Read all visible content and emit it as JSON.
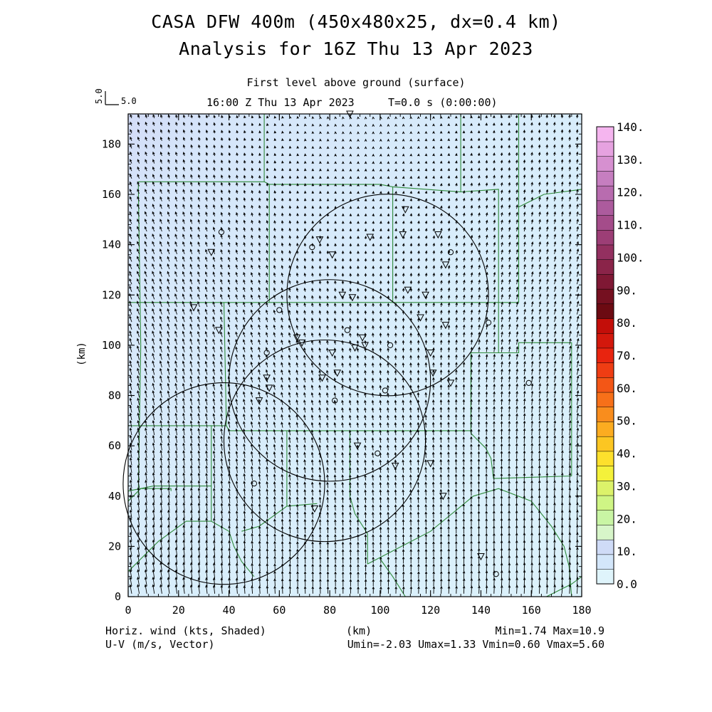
{
  "title": {
    "line1": "CASA DFW 400m (450x480x25, dx=0.4 km)",
    "line2": "Analysis for 16Z Thu 13 Apr 2023"
  },
  "subtitle": {
    "level": "First level above ground (surface)",
    "time": "16:00 Z Thu 13 Apr 2023",
    "elapsed": "T=0.0 s (0:00:00)"
  },
  "reference_vector": {
    "label_x": "5.0",
    "label_y": "5.0"
  },
  "axes": {
    "xlabel": "(km)",
    "ylabel": "(km)",
    "xlim": [
      0,
      180
    ],
    "ylim": [
      0,
      192
    ],
    "xticks": [
      "0",
      "20",
      "40",
      "60",
      "80",
      "100",
      "120",
      "140",
      "160",
      "180"
    ],
    "yticks": [
      "0",
      "20",
      "40",
      "60",
      "80",
      "100",
      "120",
      "140",
      "160",
      "180"
    ]
  },
  "colorbar": {
    "labels": [
      "0.0",
      "10.",
      "20.",
      "30.",
      "40.",
      "50.",
      "60.",
      "70.",
      "80.",
      "90.",
      "100.",
      "110.",
      "120.",
      "130.",
      "140."
    ],
    "colors": [
      "#dff4fb",
      "#d3e6fa",
      "#cfdbf7",
      "#d7f5c9",
      "#c9f5a4",
      "#cff585",
      "#dcf26a",
      "#f4f13a",
      "#fde02c",
      "#fcc622",
      "#fcac20",
      "#f98d1d",
      "#f77019",
      "#f35616",
      "#ef3d13",
      "#e8240f",
      "#d3180c",
      "#c30e09",
      "#6c0a12",
      "#751020",
      "#7f1834",
      "#8a2449",
      "#933060",
      "#9c3e76",
      "#a44c8a",
      "#ac5b9d",
      "#b86caf",
      "#c67ec0",
      "#d690d0",
      "#e6a2e0",
      "#f5b5ef"
    ]
  },
  "footer": {
    "left1": "Horiz. wind (kts, Shaded)",
    "left2": "U-V (m/s, Vector)",
    "center": "(km)",
    "right1": "Min=1.74 Max=10.9",
    "right2": "Umin=-2.03 Umax=1.33 Vmin=0.60 Vmax=5.60"
  },
  "radars": [
    {
      "name": "radar-1",
      "center": [
        38,
        45
      ],
      "radius_km": 40
    },
    {
      "name": "radar-2",
      "center": [
        80,
        86
      ],
      "radius_km": 40
    },
    {
      "name": "radar-3",
      "center": [
        103,
        120
      ],
      "radius_km": 40
    },
    {
      "name": "radar-4",
      "center": [
        78,
        62
      ],
      "radius_km": 40
    }
  ],
  "stations_circle": [
    [
      37,
      145
    ],
    [
      55,
      97
    ],
    [
      60,
      114
    ],
    [
      73,
      139
    ],
    [
      87,
      106
    ],
    [
      82,
      78
    ],
    [
      102,
      82
    ],
    [
      99,
      57
    ],
    [
      104,
      100
    ],
    [
      128,
      137
    ],
    [
      143,
      109
    ],
    [
      159,
      85
    ],
    [
      50,
      45
    ],
    [
      146,
      9
    ]
  ],
  "stations_triangle": [
    [
      33,
      137
    ],
    [
      26,
      115
    ],
    [
      36,
      106
    ],
    [
      55,
      87
    ],
    [
      56,
      83
    ],
    [
      52,
      78
    ],
    [
      67,
      103
    ],
    [
      69,
      101
    ],
    [
      76,
      142
    ],
    [
      81,
      136
    ],
    [
      85,
      120
    ],
    [
      89,
      119
    ],
    [
      81,
      97
    ],
    [
      83,
      89
    ],
    [
      77,
      87
    ],
    [
      93,
      103
    ],
    [
      94,
      100
    ],
    [
      90,
      99
    ],
    [
      96,
      143
    ],
    [
      110,
      154
    ],
    [
      109,
      144
    ],
    [
      123,
      144
    ],
    [
      111,
      122
    ],
    [
      118,
      120
    ],
    [
      116,
      111
    ],
    [
      126,
      108
    ],
    [
      126,
      132
    ],
    [
      120,
      97
    ],
    [
      121,
      89
    ],
    [
      128,
      85
    ],
    [
      91,
      60
    ],
    [
      106,
      52
    ],
    [
      120,
      53
    ],
    [
      125,
      40
    ],
    [
      74,
      35
    ],
    [
      140,
      16
    ],
    [
      88,
      192
    ]
  ],
  "counties": [
    [
      [
        4,
        165
      ],
      [
        54,
        165
      ],
      [
        54,
        192
      ]
    ],
    [
      [
        54,
        165
      ],
      [
        56,
        164
      ],
      [
        56,
        117
      ]
    ],
    [
      [
        4,
        165
      ],
      [
        5,
        100
      ],
      [
        4,
        40
      ]
    ],
    [
      [
        56,
        164
      ],
      [
        100,
        164
      ],
      [
        105,
        163
      ],
      [
        105,
        117
      ]
    ],
    [
      [
        105,
        163
      ],
      [
        132,
        161
      ],
      [
        132,
        192
      ]
    ],
    [
      [
        132,
        161
      ],
      [
        147,
        162
      ],
      [
        147,
        117
      ]
    ],
    [
      [
        0,
        117
      ],
      [
        56,
        117
      ],
      [
        105,
        117
      ],
      [
        147,
        117
      ],
      [
        155,
        117
      ],
      [
        155,
        192
      ]
    ],
    [
      [
        147,
        117
      ],
      [
        147,
        97
      ],
      [
        136,
        97
      ],
      [
        136,
        67
      ],
      [
        136,
        65
      ]
    ],
    [
      [
        147,
        97
      ],
      [
        155,
        97
      ],
      [
        155,
        101
      ],
      [
        176,
        101
      ],
      [
        176,
        48
      ]
    ],
    [
      [
        155,
        155
      ],
      [
        165,
        160
      ],
      [
        180,
        162
      ]
    ],
    [
      [
        38,
        117
      ],
      [
        39,
        68
      ],
      [
        33,
        68
      ],
      [
        33,
        30
      ]
    ],
    [
      [
        0,
        68
      ],
      [
        33,
        68
      ]
    ],
    [
      [
        39,
        68
      ],
      [
        40,
        66
      ],
      [
        63,
        66
      ],
      [
        63,
        36
      ]
    ],
    [
      [
        63,
        66
      ],
      [
        88,
        66
      ],
      [
        136,
        66
      ]
    ],
    [
      [
        88,
        66
      ],
      [
        88,
        40
      ],
      [
        90,
        33
      ],
      [
        95,
        25
      ],
      [
        95,
        13
      ]
    ],
    [
      [
        0,
        10
      ],
      [
        12,
        22
      ],
      [
        23,
        30
      ],
      [
        33,
        30
      ]
    ],
    [
      [
        0,
        38
      ],
      [
        5,
        43
      ],
      [
        17,
        43
      ],
      [
        17,
        42
      ]
    ],
    [
      [
        0,
        42
      ],
      [
        10,
        44
      ],
      [
        17,
        44
      ],
      [
        33,
        44
      ]
    ],
    [
      [
        33,
        30
      ],
      [
        40,
        26
      ],
      [
        42,
        20
      ],
      [
        45,
        14
      ],
      [
        50,
        8
      ]
    ],
    [
      [
        45,
        26
      ],
      [
        52,
        28
      ],
      [
        63,
        36
      ],
      [
        75,
        37
      ]
    ],
    [
      [
        95,
        13
      ],
      [
        120,
        26
      ],
      [
        137,
        40
      ],
      [
        147,
        43
      ],
      [
        160,
        38
      ],
      [
        168,
        28
      ],
      [
        173,
        20
      ],
      [
        175,
        12
      ],
      [
        176,
        0
      ]
    ],
    [
      [
        136,
        65
      ],
      [
        142,
        59
      ],
      [
        144,
        55
      ],
      [
        145,
        47
      ],
      [
        176,
        48
      ]
    ],
    [
      [
        100,
        15
      ],
      [
        105,
        8
      ],
      [
        110,
        0
      ]
    ],
    [
      [
        166,
        0
      ],
      [
        176,
        5
      ],
      [
        180,
        8
      ]
    ]
  ]
}
